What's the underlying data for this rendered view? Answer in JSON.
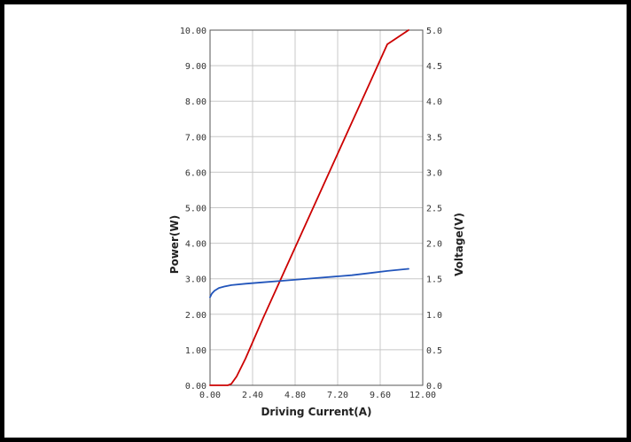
{
  "chart_data": {
    "type": "line",
    "title": "",
    "xlabel": "Driving Current(A)",
    "ylabel_left": "Power(W)",
    "ylabel_right": "Voltage(V)",
    "xlim": [
      0,
      12
    ],
    "ylim_left": [
      0,
      10
    ],
    "ylim_right": [
      0,
      5
    ],
    "x_ticks": [
      "0.00",
      "2.40",
      "4.80",
      "7.20",
      "9.60",
      "12.00"
    ],
    "y_left_ticks": [
      "0.00",
      "1.00",
      "2.00",
      "3.00",
      "4.00",
      "5.00",
      "6.00",
      "7.00",
      "8.00",
      "9.00",
      "10.00"
    ],
    "y_right_ticks": [
      "0.0",
      "0.5",
      "1.0",
      "1.5",
      "2.0",
      "2.5",
      "3.0",
      "3.5",
      "4.0",
      "4.5",
      "5.0"
    ],
    "grid": true,
    "series": [
      {
        "axis": "left",
        "color": "#cc0000",
        "x": [
          0,
          0.5,
          1.0,
          1.1,
          1.2,
          1.5,
          2.0,
          3.0,
          4.0,
          5.0,
          6.0,
          7.0,
          8.0,
          9.0,
          10.0,
          11.2
        ],
        "values": [
          0,
          0,
          0,
          0.02,
          0.04,
          0.25,
          0.75,
          1.9,
          3.0,
          4.1,
          5.2,
          6.3,
          7.4,
          8.5,
          9.6,
          10.0
        ]
      },
      {
        "axis": "right",
        "color": "#2255bb",
        "x": [
          0,
          0.1,
          0.25,
          0.5,
          0.8,
          1.2,
          2.0,
          3.0,
          4.0,
          5.0,
          6.0,
          7.0,
          8.0,
          9.0,
          10.0,
          11.2
        ],
        "values": [
          1.24,
          1.29,
          1.33,
          1.37,
          1.39,
          1.41,
          1.43,
          1.45,
          1.47,
          1.49,
          1.51,
          1.53,
          1.55,
          1.58,
          1.61,
          1.64
        ]
      }
    ]
  }
}
